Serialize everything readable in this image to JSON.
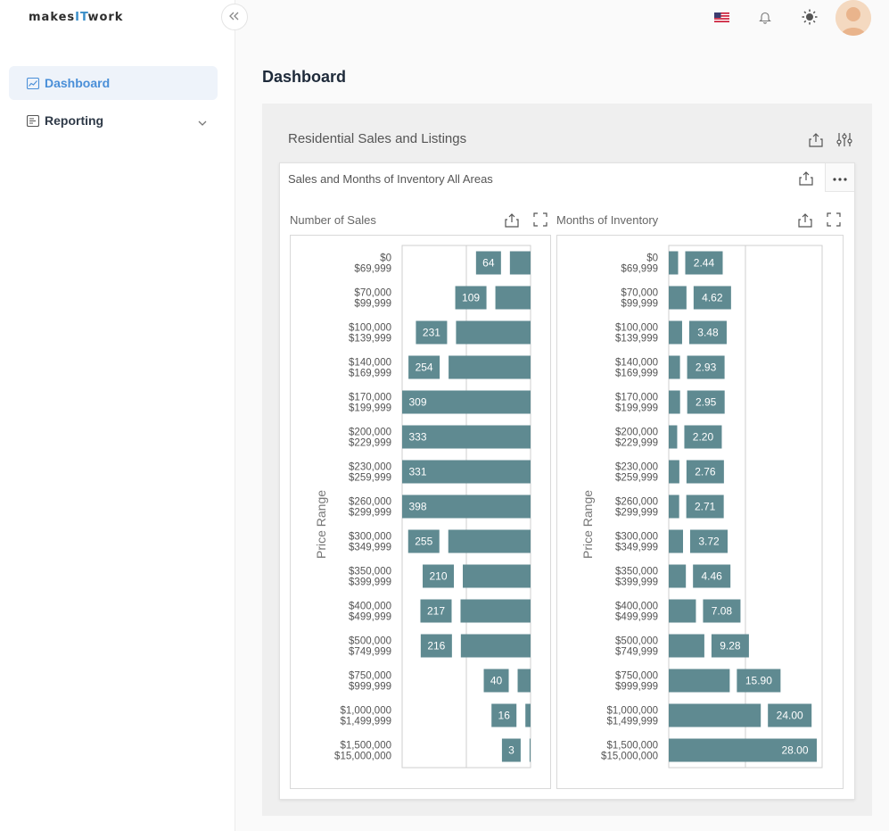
{
  "app": {
    "logo": {
      "part1": "makes",
      "part2": "IT",
      "part3": "work"
    }
  },
  "sidebar": {
    "items": [
      {
        "label": "Dashboard",
        "icon": "chart-line-icon",
        "active": true
      },
      {
        "label": "Reporting",
        "icon": "report-icon",
        "active": false,
        "expandable": true
      }
    ]
  },
  "header": {
    "icons": [
      "us-flag-icon",
      "bell-icon",
      "sun-icon",
      "avatar"
    ]
  },
  "page": {
    "title": "Dashboard"
  },
  "panel": {
    "title": "Residential Sales and Listings"
  },
  "card": {
    "title": "Sales and Months of Inventory All Areas"
  },
  "colors": {
    "bar": "#5f8a91",
    "accent": "#4a8fd8"
  },
  "chart_data": [
    {
      "type": "bar",
      "orientation": "horizontal",
      "title": "Number of Sales",
      "ylabel": "Price Range",
      "direction": "right-to-left",
      "categories": [
        [
          "$0",
          "$69,999"
        ],
        [
          "$70,000",
          "$99,999"
        ],
        [
          "$100,000",
          "$139,999"
        ],
        [
          "$140,000",
          "$169,999"
        ],
        [
          "$170,000",
          "$199,999"
        ],
        [
          "$200,000",
          "$229,999"
        ],
        [
          "$230,000",
          "$259,999"
        ],
        [
          "$260,000",
          "$299,999"
        ],
        [
          "$300,000",
          "$349,999"
        ],
        [
          "$350,000",
          "$399,999"
        ],
        [
          "$400,000",
          "$499,999"
        ],
        [
          "$500,000",
          "$749,999"
        ],
        [
          "$750,000",
          "$999,999"
        ],
        [
          "$1,000,000",
          "$1,499,999"
        ],
        [
          "$1,500,000",
          "$15,000,000"
        ]
      ],
      "values": [
        64,
        109,
        231,
        254,
        309,
        333,
        331,
        398,
        255,
        210,
        217,
        216,
        40,
        16,
        3
      ],
      "labels": [
        "64",
        "109",
        "231",
        "254",
        "309",
        "333",
        "331",
        "398",
        "255",
        "210",
        "217",
        "216",
        "40",
        "16",
        "3"
      ],
      "xlim": [
        0,
        398
      ],
      "grid": true
    },
    {
      "type": "bar",
      "orientation": "horizontal",
      "title": "Months of Inventory",
      "ylabel": "Price Range",
      "direction": "left-to-right",
      "categories": [
        [
          "$0",
          "$69,999"
        ],
        [
          "$70,000",
          "$99,999"
        ],
        [
          "$100,000",
          "$139,999"
        ],
        [
          "$140,000",
          "$169,999"
        ],
        [
          "$170,000",
          "$199,999"
        ],
        [
          "$200,000",
          "$229,999"
        ],
        [
          "$230,000",
          "$259,999"
        ],
        [
          "$260,000",
          "$299,999"
        ],
        [
          "$300,000",
          "$349,999"
        ],
        [
          "$350,000",
          "$399,999"
        ],
        [
          "$400,000",
          "$499,999"
        ],
        [
          "$500,000",
          "$749,999"
        ],
        [
          "$750,000",
          "$999,999"
        ],
        [
          "$1,000,000",
          "$1,499,999"
        ],
        [
          "$1,500,000",
          "$15,000,000"
        ]
      ],
      "values": [
        2.44,
        4.62,
        3.48,
        2.93,
        2.95,
        2.2,
        2.76,
        2.71,
        3.72,
        4.46,
        7.08,
        9.28,
        15.9,
        24.0,
        28.0
      ],
      "labels": [
        "2.44",
        "4.62",
        "3.48",
        "2.93",
        "2.95",
        "2.20",
        "2.76",
        "2.71",
        "3.72",
        "4.46",
        "7.08",
        "9.28",
        "15.90",
        "24.00",
        "28.00"
      ],
      "xlim": [
        0,
        40
      ],
      "grid": true
    }
  ]
}
